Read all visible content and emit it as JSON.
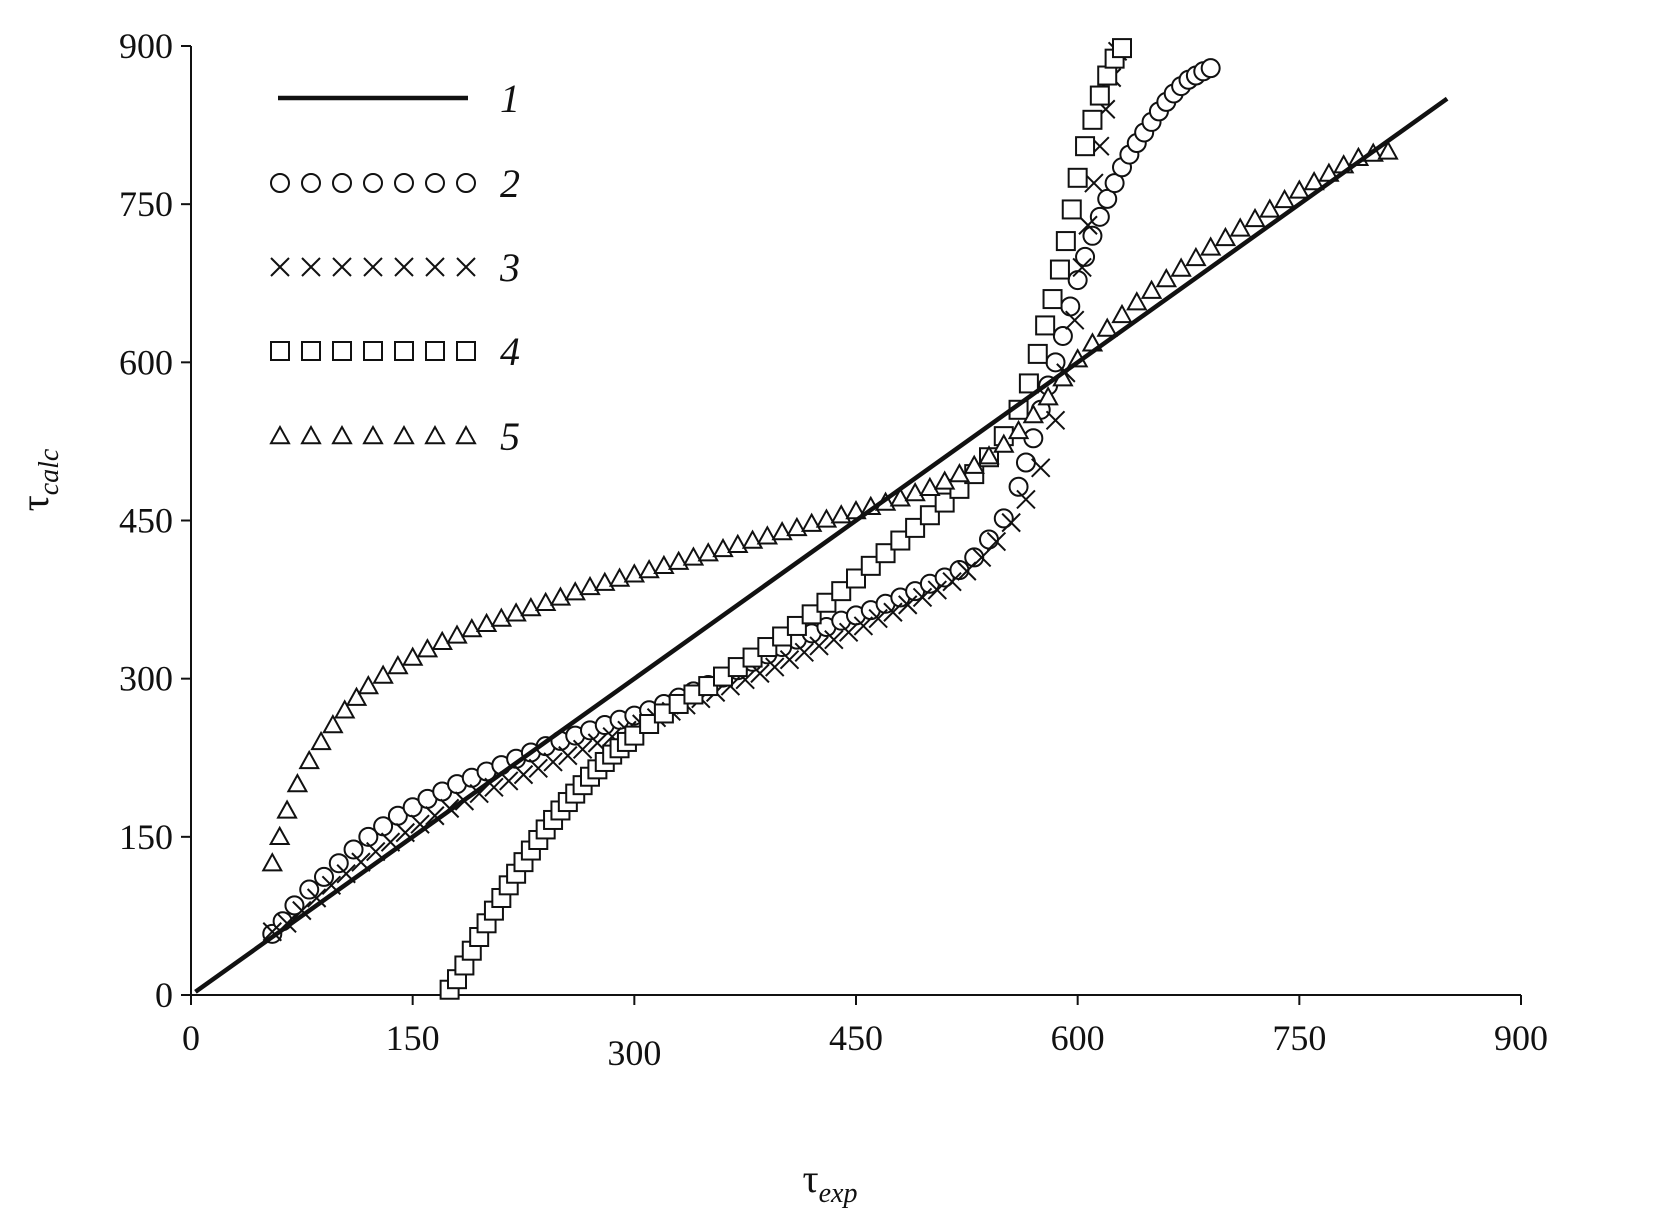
{
  "chart_data": {
    "type": "scatter",
    "xlabel": {
      "main": "τ",
      "sub": "exp"
    },
    "ylabel": {
      "main": "τ",
      "sub": "calc"
    },
    "xlim": [
      0,
      900
    ],
    "ylim": [
      0,
      900
    ],
    "x_ticks": [
      0,
      150,
      300,
      450,
      600,
      750,
      900
    ],
    "y_ticks": [
      0,
      150,
      300,
      450,
      600,
      750,
      900
    ],
    "x_tick_labels": [
      "0",
      "150",
      "300",
      "450",
      "600",
      "750",
      "900"
    ],
    "y_tick_labels": [
      "0",
      "150",
      "300",
      "450",
      "600",
      "750",
      "900"
    ],
    "grid": false,
    "legend_position": "top-left",
    "series": [
      {
        "name": "1",
        "marker": "line",
        "points": [
          [
            3,
            3
          ],
          [
            850,
            850
          ]
        ]
      },
      {
        "name": "2",
        "marker": "circle",
        "points": [
          [
            55,
            58
          ],
          [
            62,
            70
          ],
          [
            70,
            85
          ],
          [
            80,
            100
          ],
          [
            90,
            112
          ],
          [
            100,
            125
          ],
          [
            110,
            138
          ],
          [
            120,
            150
          ],
          [
            130,
            160
          ],
          [
            140,
            170
          ],
          [
            150,
            178
          ],
          [
            160,
            186
          ],
          [
            170,
            193
          ],
          [
            180,
            200
          ],
          [
            190,
            206
          ],
          [
            200,
            212
          ],
          [
            210,
            218
          ],
          [
            220,
            224
          ],
          [
            230,
            230
          ],
          [
            240,
            236
          ],
          [
            250,
            241
          ],
          [
            260,
            246
          ],
          [
            270,
            251
          ],
          [
            280,
            256
          ],
          [
            290,
            261
          ],
          [
            300,
            265
          ],
          [
            310,
            270
          ],
          [
            320,
            276
          ],
          [
            330,
            282
          ],
          [
            340,
            288
          ],
          [
            350,
            294
          ],
          [
            360,
            301
          ],
          [
            370,
            308
          ],
          [
            380,
            316
          ],
          [
            390,
            323
          ],
          [
            400,
            330
          ],
          [
            410,
            337
          ],
          [
            420,
            343
          ],
          [
            430,
            349
          ],
          [
            440,
            355
          ],
          [
            450,
            360
          ],
          [
            460,
            365
          ],
          [
            470,
            371
          ],
          [
            480,
            377
          ],
          [
            490,
            383
          ],
          [
            500,
            390
          ],
          [
            510,
            396
          ],
          [
            520,
            403
          ],
          [
            530,
            415
          ],
          [
            540,
            432
          ],
          [
            550,
            452
          ],
          [
            560,
            482
          ],
          [
            565,
            505
          ],
          [
            570,
            528
          ],
          [
            575,
            555
          ],
          [
            580,
            578
          ],
          [
            585,
            600
          ],
          [
            590,
            625
          ],
          [
            595,
            653
          ],
          [
            600,
            678
          ],
          [
            605,
            700
          ],
          [
            610,
            720
          ],
          [
            615,
            738
          ],
          [
            620,
            755
          ],
          [
            625,
            770
          ],
          [
            630,
            785
          ],
          [
            635,
            797
          ],
          [
            640,
            808
          ],
          [
            645,
            818
          ],
          [
            650,
            828
          ],
          [
            655,
            838
          ],
          [
            660,
            847
          ],
          [
            665,
            855
          ],
          [
            670,
            862
          ],
          [
            675,
            868
          ],
          [
            680,
            872
          ],
          [
            685,
            876
          ],
          [
            690,
            879
          ]
        ]
      },
      {
        "name": "3",
        "marker": "cross",
        "points": [
          [
            55,
            60
          ],
          [
            65,
            68
          ],
          [
            75,
            80
          ],
          [
            85,
            92
          ],
          [
            95,
            104
          ],
          [
            105,
            115
          ],
          [
            115,
            126
          ],
          [
            125,
            136
          ],
          [
            135,
            145
          ],
          [
            145,
            154
          ],
          [
            155,
            162
          ],
          [
            165,
            170
          ],
          [
            175,
            177
          ],
          [
            185,
            184
          ],
          [
            195,
            191
          ],
          [
            205,
            197
          ],
          [
            215,
            203
          ],
          [
            225,
            209
          ],
          [
            235,
            215
          ],
          [
            245,
            221
          ],
          [
            255,
            227
          ],
          [
            265,
            233
          ],
          [
            275,
            239
          ],
          [
            285,
            245
          ],
          [
            295,
            251
          ],
          [
            305,
            257
          ],
          [
            315,
            263
          ],
          [
            325,
            269
          ],
          [
            335,
            275
          ],
          [
            345,
            281
          ],
          [
            355,
            287
          ],
          [
            365,
            293
          ],
          [
            375,
            299
          ],
          [
            385,
            305
          ],
          [
            395,
            311
          ],
          [
            405,
            318
          ],
          [
            415,
            325
          ],
          [
            425,
            331
          ],
          [
            435,
            337
          ],
          [
            445,
            344
          ],
          [
            455,
            350
          ],
          [
            465,
            357
          ],
          [
            475,
            363
          ],
          [
            485,
            370
          ],
          [
            495,
            377
          ],
          [
            505,
            384
          ],
          [
            515,
            392
          ],
          [
            525,
            402
          ],
          [
            535,
            415
          ],
          [
            545,
            430
          ],
          [
            555,
            448
          ],
          [
            565,
            470
          ],
          [
            575,
            500
          ],
          [
            585,
            545
          ],
          [
            592,
            590
          ],
          [
            598,
            640
          ],
          [
            603,
            690
          ],
          [
            607,
            730
          ],
          [
            611,
            770
          ],
          [
            615,
            805
          ],
          [
            619,
            840
          ],
          [
            623,
            870
          ],
          [
            627,
            895
          ]
        ]
      },
      {
        "name": "4",
        "marker": "square",
        "points": [
          [
            175,
            5
          ],
          [
            180,
            15
          ],
          [
            185,
            28
          ],
          [
            190,
            42
          ],
          [
            195,
            55
          ],
          [
            200,
            68
          ],
          [
            205,
            80
          ],
          [
            210,
            92
          ],
          [
            215,
            104
          ],
          [
            220,
            115
          ],
          [
            225,
            126
          ],
          [
            230,
            137
          ],
          [
            235,
            147
          ],
          [
            240,
            157
          ],
          [
            245,
            166
          ],
          [
            250,
            175
          ],
          [
            255,
            183
          ],
          [
            260,
            191
          ],
          [
            265,
            199
          ],
          [
            270,
            207
          ],
          [
            275,
            214
          ],
          [
            280,
            221
          ],
          [
            285,
            228
          ],
          [
            290,
            234
          ],
          [
            295,
            240
          ],
          [
            300,
            246
          ],
          [
            310,
            257
          ],
          [
            320,
            267
          ],
          [
            330,
            276
          ],
          [
            340,
            285
          ],
          [
            350,
            293
          ],
          [
            360,
            302
          ],
          [
            370,
            311
          ],
          [
            380,
            320
          ],
          [
            390,
            330
          ],
          [
            400,
            340
          ],
          [
            410,
            350
          ],
          [
            420,
            361
          ],
          [
            430,
            372
          ],
          [
            440,
            383
          ],
          [
            450,
            395
          ],
          [
            460,
            407
          ],
          [
            470,
            419
          ],
          [
            480,
            431
          ],
          [
            490,
            443
          ],
          [
            500,
            455
          ],
          [
            510,
            467
          ],
          [
            520,
            480
          ],
          [
            530,
            494
          ],
          [
            540,
            510
          ],
          [
            550,
            530
          ],
          [
            560,
            555
          ],
          [
            567,
            580
          ],
          [
            573,
            608
          ],
          [
            578,
            635
          ],
          [
            583,
            660
          ],
          [
            588,
            688
          ],
          [
            592,
            715
          ],
          [
            596,
            745
          ],
          [
            600,
            775
          ],
          [
            605,
            805
          ],
          [
            610,
            830
          ],
          [
            615,
            853
          ],
          [
            620,
            872
          ],
          [
            625,
            888
          ],
          [
            630,
            898
          ]
        ]
      },
      {
        "name": "5",
        "marker": "triangle",
        "points": [
          [
            55,
            125
          ],
          [
            60,
            150
          ],
          [
            65,
            175
          ],
          [
            72,
            200
          ],
          [
            80,
            222
          ],
          [
            88,
            240
          ],
          [
            96,
            256
          ],
          [
            104,
            270
          ],
          [
            112,
            282
          ],
          [
            120,
            293
          ],
          [
            130,
            303
          ],
          [
            140,
            312
          ],
          [
            150,
            320
          ],
          [
            160,
            328
          ],
          [
            170,
            335
          ],
          [
            180,
            341
          ],
          [
            190,
            347
          ],
          [
            200,
            352
          ],
          [
            210,
            357
          ],
          [
            220,
            362
          ],
          [
            230,
            367
          ],
          [
            240,
            372
          ],
          [
            250,
            377
          ],
          [
            260,
            382
          ],
          [
            270,
            387
          ],
          [
            280,
            391
          ],
          [
            290,
            395
          ],
          [
            300,
            399
          ],
          [
            310,
            403
          ],
          [
            320,
            407
          ],
          [
            330,
            411
          ],
          [
            340,
            415
          ],
          [
            350,
            419
          ],
          [
            360,
            423
          ],
          [
            370,
            427
          ],
          [
            380,
            431
          ],
          [
            390,
            435
          ],
          [
            400,
            439
          ],
          [
            410,
            443
          ],
          [
            420,
            447
          ],
          [
            430,
            451
          ],
          [
            440,
            455
          ],
          [
            450,
            459
          ],
          [
            460,
            463
          ],
          [
            470,
            467
          ],
          [
            480,
            471
          ],
          [
            490,
            476
          ],
          [
            500,
            481
          ],
          [
            510,
            487
          ],
          [
            520,
            494
          ],
          [
            530,
            502
          ],
          [
            540,
            511
          ],
          [
            550,
            522
          ],
          [
            560,
            535
          ],
          [
            570,
            550
          ],
          [
            580,
            567
          ],
          [
            590,
            585
          ],
          [
            600,
            603
          ],
          [
            610,
            618
          ],
          [
            620,
            632
          ],
          [
            630,
            645
          ],
          [
            640,
            657
          ],
          [
            650,
            668
          ],
          [
            660,
            679
          ],
          [
            670,
            689
          ],
          [
            680,
            699
          ],
          [
            690,
            709
          ],
          [
            700,
            718
          ],
          [
            710,
            727
          ],
          [
            720,
            736
          ],
          [
            730,
            745
          ],
          [
            740,
            754
          ],
          [
            750,
            763
          ],
          [
            760,
            771
          ],
          [
            770,
            779
          ],
          [
            780,
            787
          ],
          [
            790,
            794
          ],
          [
            800,
            798
          ],
          [
            810,
            800
          ]
        ]
      }
    ]
  }
}
